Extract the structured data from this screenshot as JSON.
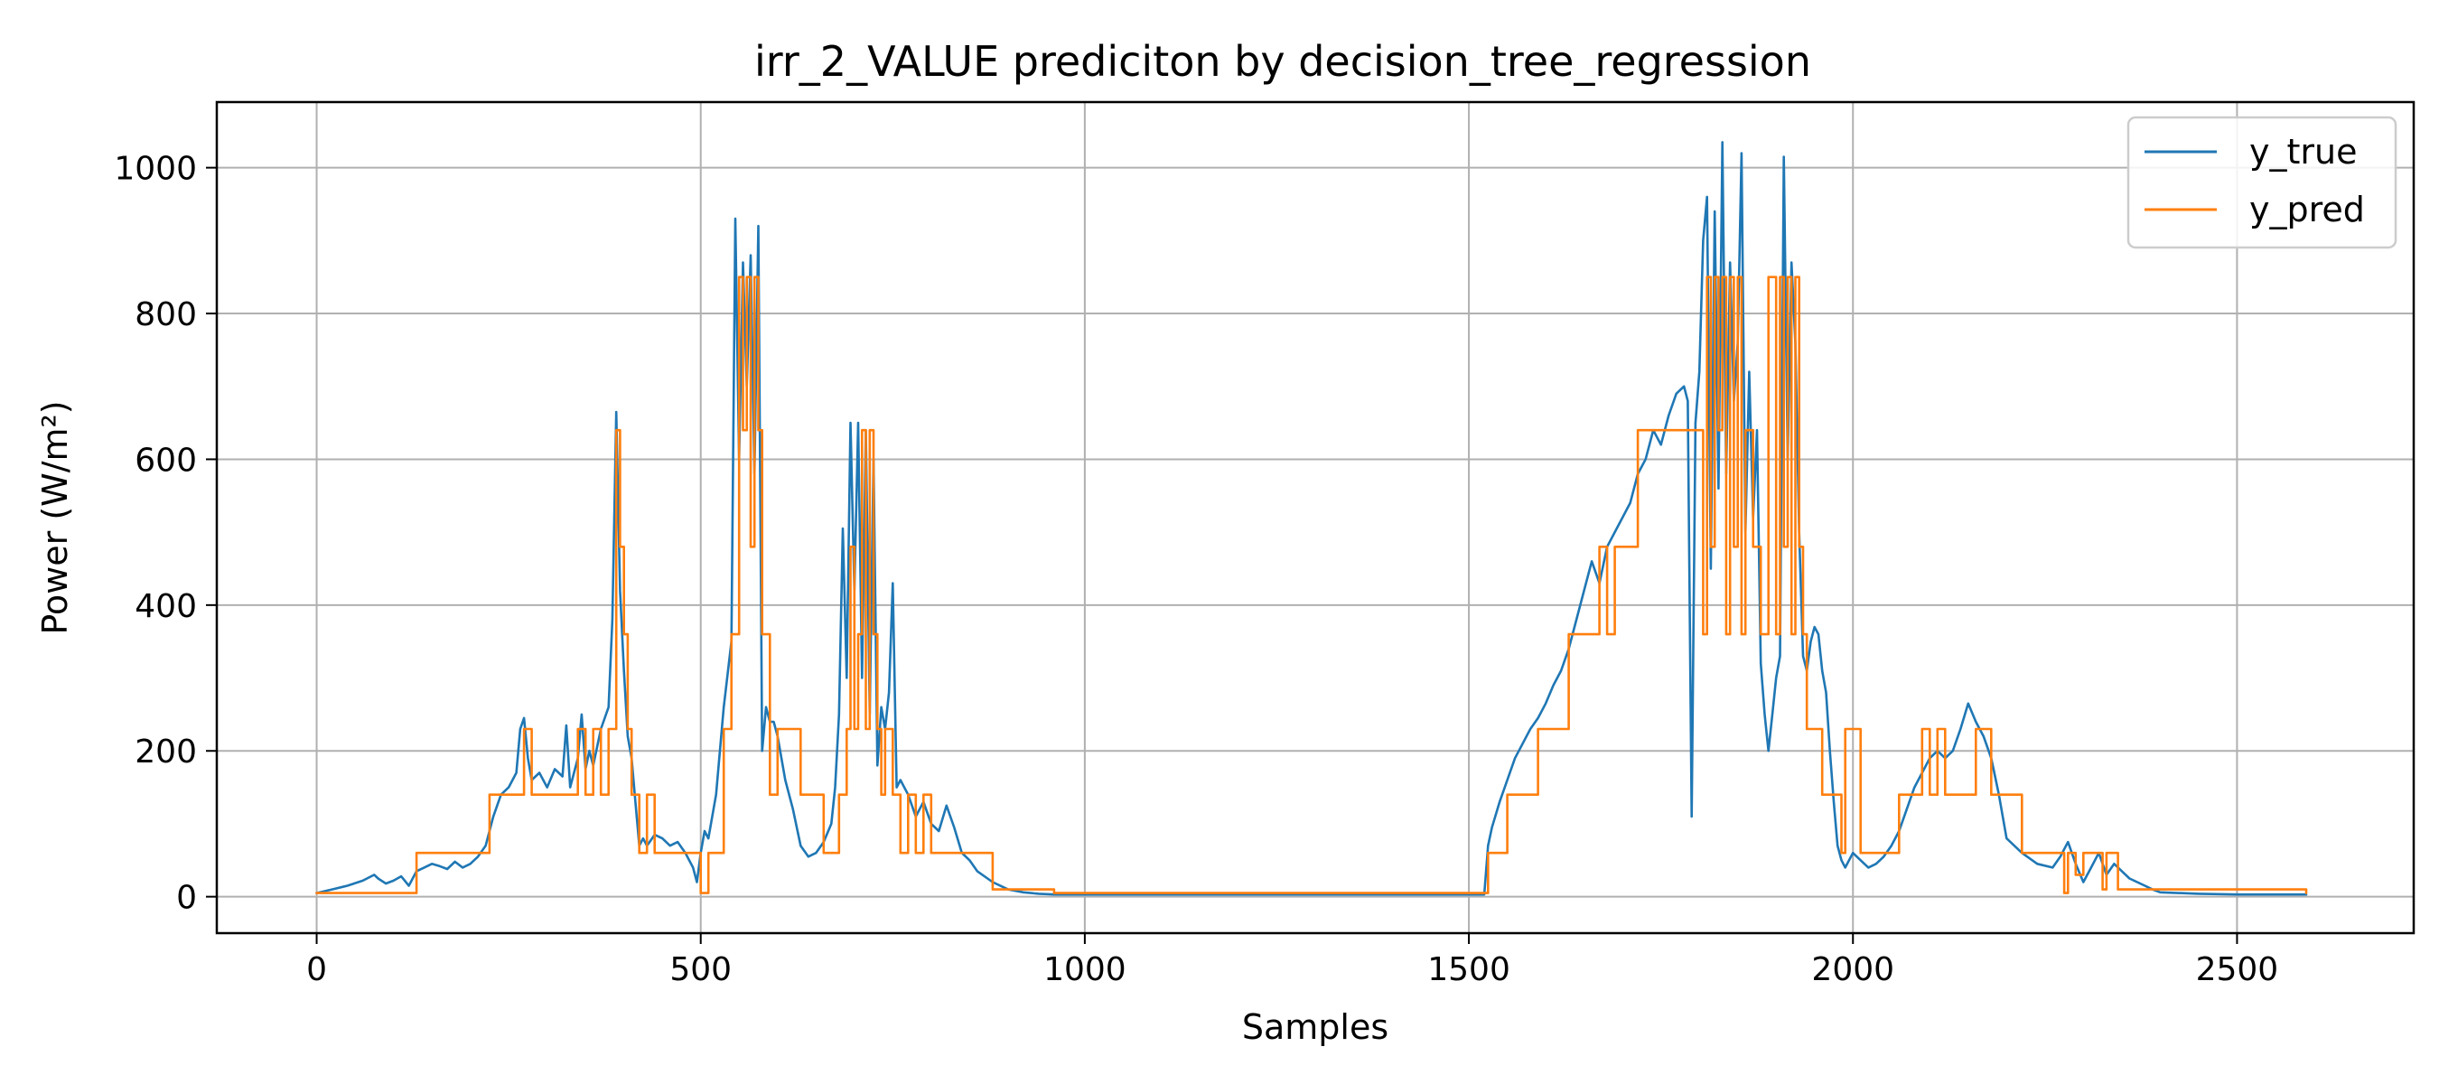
{
  "chart_data": {
    "type": "line",
    "title": "irr_2_VALUE prediciton by decision_tree_regression",
    "xlabel": "Samples",
    "ylabel": "Power (W/m²)",
    "xlim": [
      -130,
      2730
    ],
    "ylim": [
      -50,
      1090
    ],
    "xticks": [
      0,
      500,
      1000,
      1500,
      2000,
      2500
    ],
    "yticks": [
      0,
      200,
      400,
      600,
      800,
      1000
    ],
    "grid": true,
    "legend_position": "top-right",
    "series": [
      {
        "name": "y_true",
        "color": "#1f77b4",
        "x": [
          0,
          20,
          40,
          60,
          75,
          80,
          90,
          100,
          110,
          120,
          130,
          140,
          150,
          160,
          170,
          180,
          190,
          200,
          210,
          220,
          230,
          240,
          250,
          260,
          265,
          270,
          275,
          280,
          290,
          300,
          310,
          320,
          325,
          330,
          340,
          345,
          350,
          355,
          360,
          370,
          380,
          385,
          390,
          395,
          400,
          405,
          410,
          415,
          420,
          425,
          430,
          440,
          450,
          460,
          470,
          480,
          490,
          495,
          500,
          505,
          510,
          520,
          530,
          540,
          545,
          550,
          555,
          560,
          565,
          570,
          575,
          580,
          585,
          590,
          595,
          600,
          610,
          620,
          630,
          640,
          650,
          660,
          670,
          675,
          680,
          685,
          690,
          695,
          700,
          705,
          710,
          715,
          720,
          725,
          730,
          735,
          740,
          745,
          750,
          755,
          760,
          770,
          780,
          790,
          800,
          810,
          820,
          830,
          840,
          850,
          860,
          880,
          900,
          920,
          940,
          960,
          980,
          1000,
          1200,
          1400,
          1520,
          1525,
          1530,
          1540,
          1550,
          1560,
          1570,
          1580,
          1590,
          1600,
          1610,
          1620,
          1630,
          1640,
          1650,
          1660,
          1670,
          1680,
          1690,
          1700,
          1710,
          1720,
          1730,
          1740,
          1750,
          1760,
          1770,
          1780,
          1785,
          1790,
          1795,
          1800,
          1805,
          1810,
          1815,
          1820,
          1825,
          1830,
          1835,
          1840,
          1845,
          1850,
          1855,
          1860,
          1865,
          1870,
          1875,
          1880,
          1885,
          1890,
          1895,
          1900,
          1905,
          1910,
          1915,
          1920,
          1925,
          1930,
          1935,
          1940,
          1945,
          1950,
          1955,
          1960,
          1965,
          1970,
          1975,
          1980,
          1985,
          1990,
          2000,
          2010,
          2020,
          2030,
          2040,
          2050,
          2060,
          2070,
          2080,
          2090,
          2100,
          2110,
          2120,
          2130,
          2140,
          2150,
          2160,
          2170,
          2180,
          2190,
          2200,
          2220,
          2240,
          2260,
          2270,
          2280,
          2290,
          2300,
          2310,
          2320,
          2330,
          2340,
          2350,
          2360,
          2370,
          2380,
          2390,
          2400,
          2450,
          2500,
          2550,
          2590
        ],
        "y": [
          5,
          10,
          15,
          22,
          30,
          25,
          18,
          22,
          28,
          15,
          35,
          40,
          45,
          42,
          38,
          48,
          40,
          45,
          55,
          70,
          110,
          140,
          150,
          170,
          230,
          245,
          190,
          160,
          170,
          150,
          175,
          165,
          235,
          150,
          190,
          250,
          175,
          200,
          180,
          230,
          260,
          380,
          665,
          420,
          310,
          220,
          190,
          130,
          70,
          80,
          70,
          85,
          80,
          70,
          75,
          60,
          40,
          20,
          60,
          90,
          80,
          140,
          260,
          350,
          930,
          600,
          870,
          700,
          880,
          580,
          920,
          200,
          260,
          240,
          240,
          220,
          160,
          120,
          70,
          55,
          60,
          75,
          100,
          150,
          250,
          505,
          300,
          650,
          420,
          650,
          300,
          640,
          250,
          600,
          180,
          260,
          230,
          280,
          430,
          150,
          160,
          140,
          110,
          130,
          100,
          90,
          125,
          95,
          60,
          50,
          35,
          20,
          10,
          6,
          4,
          3,
          3,
          3,
          3,
          3,
          3,
          70,
          95,
          130,
          160,
          190,
          210,
          230,
          245,
          265,
          290,
          310,
          340,
          380,
          420,
          460,
          430,
          480,
          500,
          520,
          540,
          580,
          600,
          640,
          620,
          660,
          690,
          700,
          680,
          110,
          650,
          720,
          900,
          960,
          450,
          940,
          560,
          1035,
          580,
          870,
          680,
          760,
          1020,
          500,
          720,
          520,
          640,
          320,
          250,
          200,
          250,
          300,
          330,
          1015,
          600,
          870,
          760,
          500,
          330,
          310,
          350,
          370,
          360,
          310,
          280,
          200,
          130,
          70,
          50,
          40,
          60,
          50,
          40,
          45,
          55,
          70,
          90,
          120,
          150,
          170,
          190,
          200,
          190,
          200,
          230,
          265,
          240,
          220,
          190,
          140,
          80,
          60,
          45,
          40,
          55,
          75,
          45,
          20,
          40,
          60,
          30,
          45,
          35,
          25,
          20,
          15,
          10,
          6,
          4,
          3,
          3,
          3
        ]
      },
      {
        "name": "y_pred",
        "color": "#ff7f0e",
        "x": [
          0,
          130,
          225,
          270,
          280,
          340,
          350,
          360,
          370,
          380,
          390,
          395,
          400,
          405,
          410,
          420,
          430,
          440,
          450,
          500,
          510,
          530,
          540,
          550,
          555,
          560,
          565,
          570,
          575,
          580,
          590,
          600,
          630,
          660,
          680,
          690,
          695,
          700,
          705,
          710,
          715,
          720,
          725,
          730,
          735,
          740,
          750,
          760,
          770,
          780,
          790,
          800,
          820,
          880,
          960,
          1525,
          1550,
          1590,
          1630,
          1670,
          1680,
          1690,
          1720,
          1800,
          1805,
          1810,
          1815,
          1820,
          1825,
          1830,
          1835,
          1840,
          1845,
          1850,
          1855,
          1860,
          1870,
          1880,
          1890,
          1900,
          1905,
          1910,
          1915,
          1920,
          1925,
          1930,
          1935,
          1940,
          1960,
          1985,
          1990,
          2010,
          2060,
          2090,
          2100,
          2110,
          2120,
          2160,
          2180,
          2220,
          2270,
          2275,
          2280,
          2290,
          2300,
          2320,
          2325,
          2330,
          2345,
          2590
        ],
        "y": [
          5,
          60,
          140,
          230,
          140,
          230,
          140,
          230,
          140,
          230,
          640,
          480,
          360,
          230,
          140,
          60,
          140,
          60,
          60,
          5,
          60,
          230,
          360,
          850,
          640,
          850,
          480,
          850,
          640,
          360,
          140,
          230,
          140,
          60,
          140,
          230,
          480,
          230,
          360,
          640,
          230,
          640,
          360,
          230,
          140,
          230,
          140,
          60,
          140,
          60,
          140,
          60,
          60,
          10,
          5,
          60,
          140,
          230,
          360,
          480,
          360,
          480,
          640,
          640,
          360,
          850,
          480,
          850,
          640,
          850,
          360,
          850,
          480,
          850,
          360,
          640,
          480,
          360,
          850,
          360,
          850,
          480,
          850,
          360,
          850,
          480,
          360,
          230,
          140,
          60,
          230,
          60,
          140,
          230,
          140,
          230,
          140,
          230,
          140,
          60,
          60,
          5,
          60,
          30,
          60,
          60,
          10,
          60,
          10,
          5
        ]
      }
    ]
  }
}
